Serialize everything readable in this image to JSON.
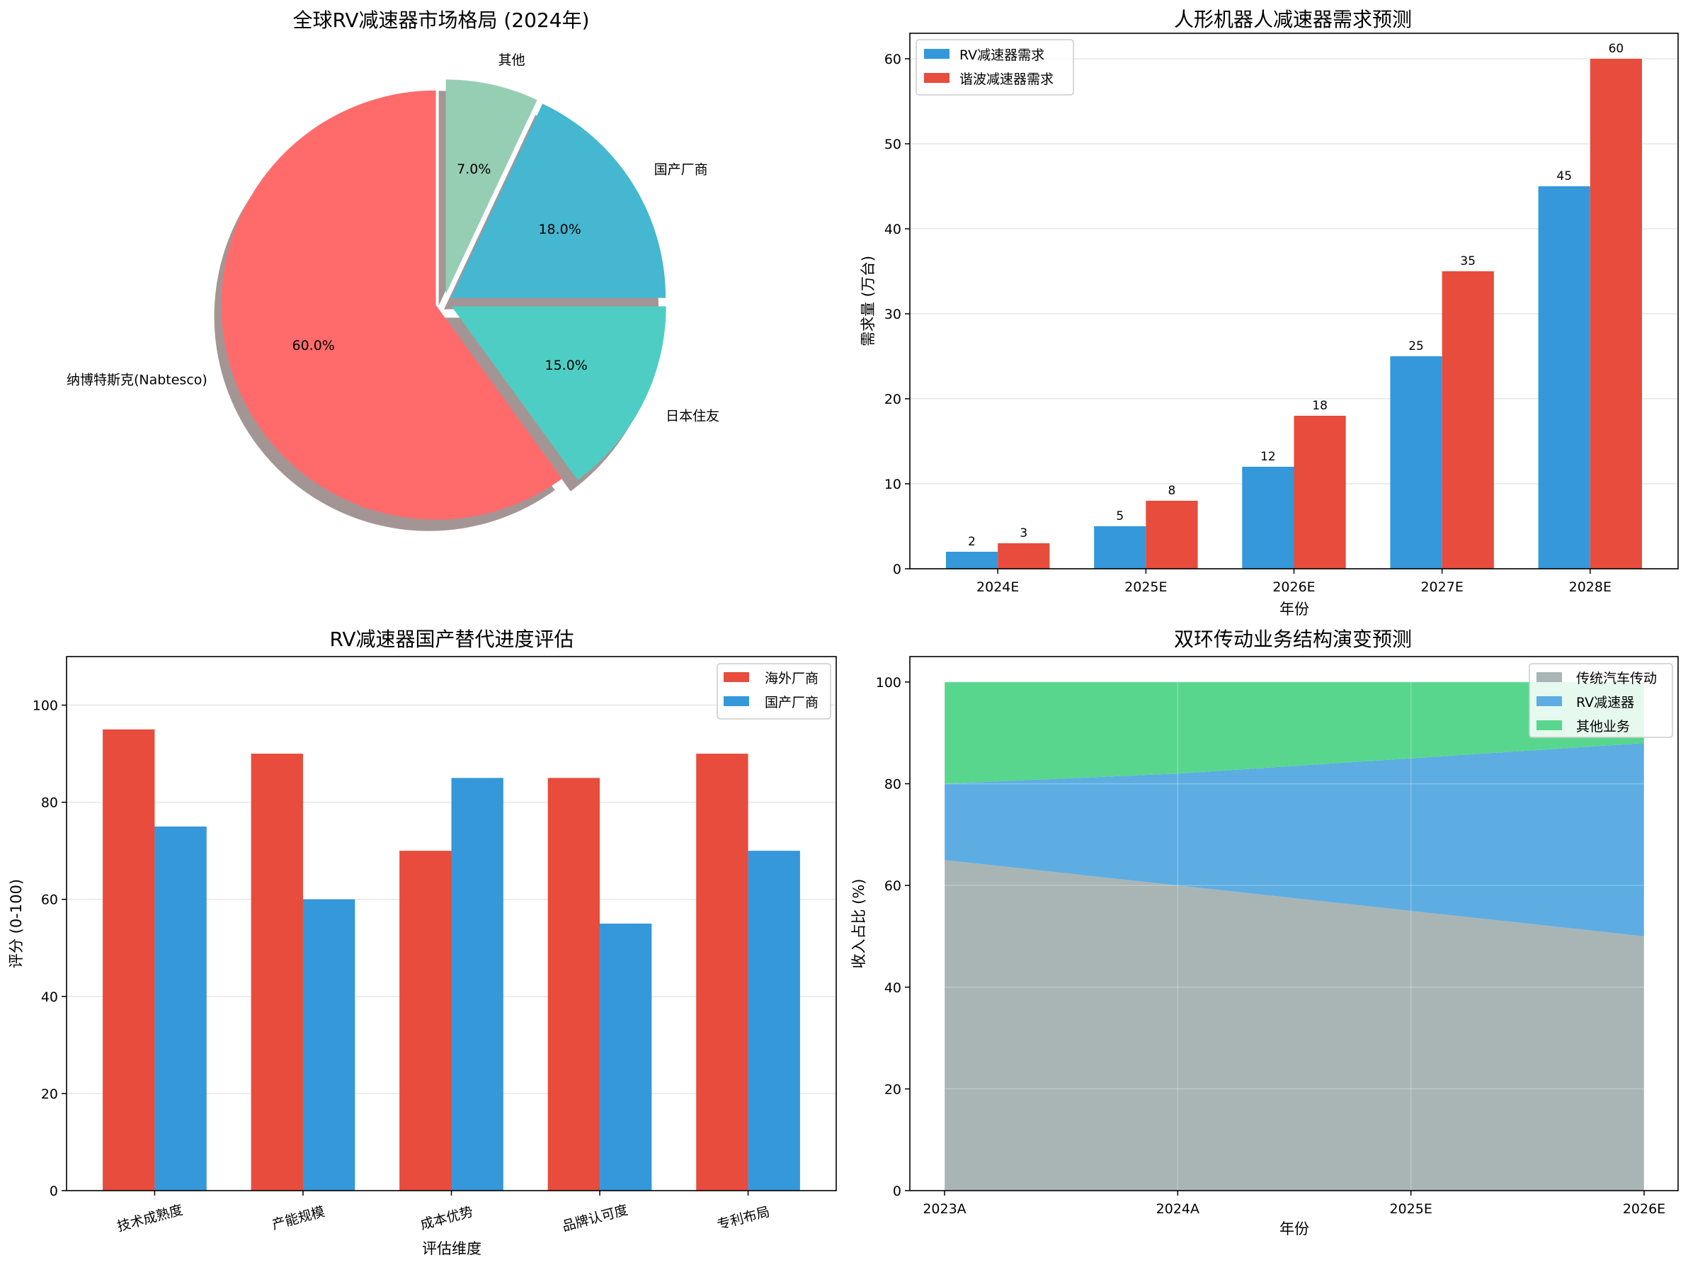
{
  "chart_data": [
    {
      "type": "pie",
      "title": "全球RV减速器市场格局 (2024年)",
      "labels": [
        "纳博特斯克(Nabtesco)",
        "日本住友",
        "国产厂商",
        "其他"
      ],
      "values": [
        60.0,
        15.0,
        18.0,
        7.0
      ],
      "pct_labels": [
        "60.0%",
        "15.0%",
        "18.0%",
        "7.0%"
      ],
      "colors": [
        "#ff6b6b",
        "#4ecdc4",
        "#45b7d1",
        "#96ceb4"
      ],
      "exploded": true,
      "shadow": true
    },
    {
      "type": "bar",
      "title": "人形机器人减速器需求预测",
      "xlabel": "年份",
      "ylabel": "需求量 (万台)",
      "categories": [
        "2024E",
        "2025E",
        "2026E",
        "2027E",
        "2028E"
      ],
      "series": [
        {
          "name": "RV减速器需求",
          "color": "#3498db",
          "values": [
            2,
            5,
            12,
            25,
            45
          ],
          "labels": [
            "2",
            "5",
            "12",
            "25",
            "45"
          ]
        },
        {
          "name": "谐波减速器需求",
          "color": "#e74c3c",
          "values": [
            3,
            8,
            18,
            35,
            60
          ],
          "labels": [
            "3",
            "8",
            "18",
            "35",
            "60"
          ]
        }
      ],
      "ylim": [
        0,
        63
      ],
      "yticks": [
        0,
        10,
        20,
        30,
        40,
        50,
        60
      ],
      "ytick_labels": [
        "0",
        "10",
        "20",
        "30",
        "40",
        "50",
        "60"
      ],
      "legend": "top-left",
      "grid": true
    },
    {
      "type": "bar",
      "title": "RV减速器国产替代进度评估",
      "xlabel": "评估维度",
      "ylabel": "评分 (0-100)",
      "categories": [
        "技术成熟度",
        "产能规模",
        "成本优势",
        "品牌认可度",
        "专利布局"
      ],
      "series": [
        {
          "name": "海外厂商",
          "color": "#e74c3c",
          "values": [
            95,
            90,
            70,
            85,
            90
          ]
        },
        {
          "name": "国产厂商",
          "color": "#3498db",
          "values": [
            75,
            60,
            85,
            55,
            70
          ]
        }
      ],
      "ylim": [
        0,
        110
      ],
      "yticks": [
        0,
        20,
        40,
        60,
        80,
        100
      ],
      "ytick_labels": [
        "0",
        "20",
        "40",
        "60",
        "80",
        "100"
      ],
      "legend": "top-right",
      "grid": true
    },
    {
      "type": "area",
      "title": "双环传动业务结构演变预测",
      "xlabel": "年份",
      "ylabel": "收入占比 (%)",
      "x": [
        "2023A",
        "2024A",
        "2025E",
        "2026E"
      ],
      "series": [
        {
          "name": "传统汽车传动",
          "color": "#a9b5b5",
          "values": [
            65,
            60,
            55,
            50
          ]
        },
        {
          "name": "RV减速器",
          "color": "#5dade2",
          "values": [
            15,
            22,
            30,
            38
          ]
        },
        {
          "name": "其他业务",
          "color": "#58d68d",
          "values": [
            20,
            18,
            15,
            12
          ]
        }
      ],
      "ylim": [
        0,
        105
      ],
      "yticks": [
        0,
        20,
        40,
        60,
        80,
        100
      ],
      "ytick_labels": [
        "0",
        "20",
        "40",
        "60",
        "80",
        "100"
      ],
      "legend": "top-right",
      "grid": true
    }
  ]
}
